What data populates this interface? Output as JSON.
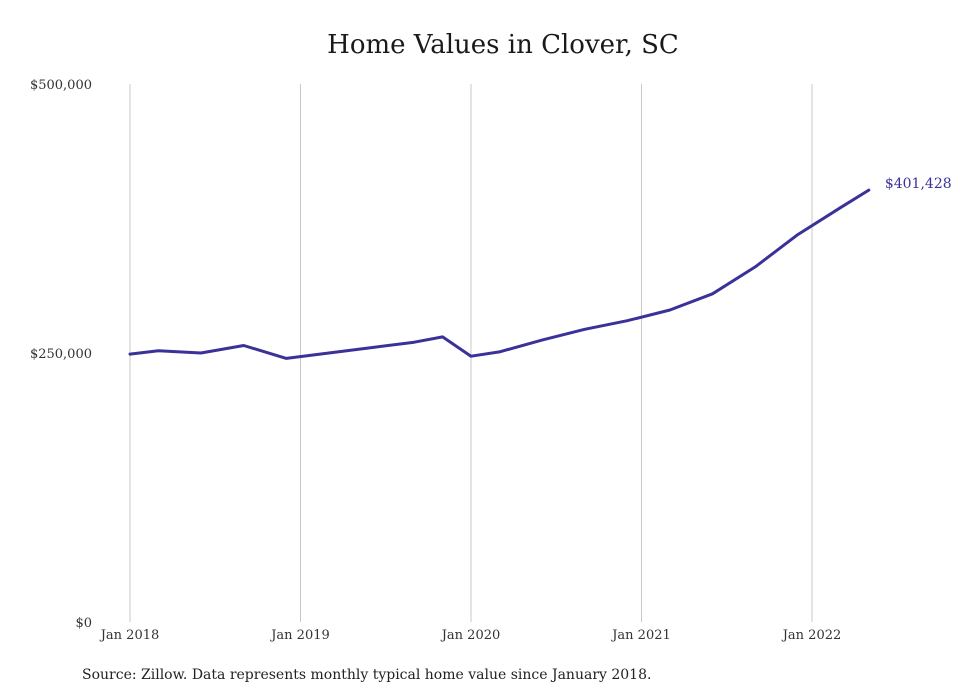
{
  "chart_data": {
    "type": "line",
    "title": "Home Values in Clover, SC",
    "source": "Source: Zillow. Data represents monthly typical home value since January 2018.",
    "x_tick_labels": [
      "Jan 2018",
      "Jan 2019",
      "Jan 2020",
      "Jan 2021",
      "Jan 2022"
    ],
    "y_tick_labels": [
      "$500,000",
      "$250,000",
      "$0"
    ],
    "y_tick_values": [
      500000,
      250000,
      0
    ],
    "ylim": [
      0,
      500000
    ],
    "grid": "vertical",
    "colors": {
      "line": "#3a3199",
      "grid": "#c8c8c8",
      "end_label": "#3a3199"
    },
    "end_label": "$401,428",
    "series": [
      {
        "x": [
          "2018-01",
          "2018-03",
          "2018-06",
          "2018-09",
          "2018-12",
          "2019-03",
          "2019-06",
          "2019-09",
          "2019-11",
          "2020-01",
          "2020-03",
          "2020-06",
          "2020-09",
          "2020-12",
          "2021-03",
          "2021-06",
          "2021-09",
          "2021-12",
          "2022-03",
          "2022-05"
        ],
        "values": [
          249000,
          252000,
          250000,
          257000,
          245000,
          250000,
          255000,
          260000,
          265000,
          247000,
          251000,
          262000,
          272000,
          280000,
          290000,
          305000,
          330000,
          360000,
          385000,
          401428
        ]
      }
    ]
  }
}
